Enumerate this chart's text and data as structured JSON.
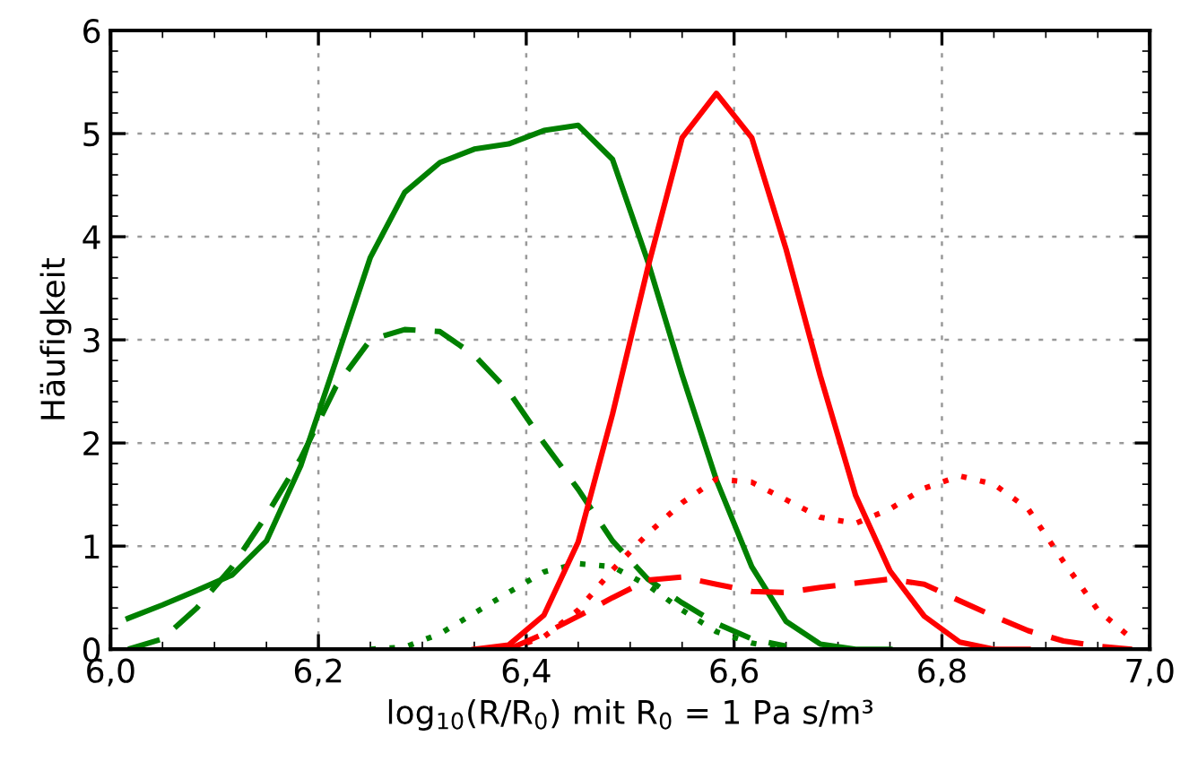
{
  "chart_data": {
    "type": "line",
    "xlabel": "log$_{10}$(R/R$_{0}$) mit R$_{0}$ = 1 Pa s/m³",
    "ylabel": "Häufigkeit",
    "xlim": [
      6.0,
      7.0
    ],
    "ylim": [
      0,
      6
    ],
    "xticks": [
      {
        "value": 6.0,
        "label": "6,0"
      },
      {
        "value": 6.2,
        "label": "6,2"
      },
      {
        "value": 6.4,
        "label": "6,4"
      },
      {
        "value": 6.6,
        "label": "6,6"
      },
      {
        "value": 6.8,
        "label": "6,8"
      },
      {
        "value": 7.0,
        "label": "7,0"
      }
    ],
    "yticks": [
      0,
      1,
      2,
      3,
      4,
      5,
      6
    ],
    "grid": true,
    "legend": false,
    "marker": "none",
    "series": [
      {
        "color": "#008000",
        "line_style": "solid",
        "x": [
          6.017,
          6.05,
          6.083,
          6.117,
          6.15,
          6.183,
          6.217,
          6.25,
          6.283,
          6.317,
          6.35,
          6.383,
          6.417,
          6.45,
          6.483,
          6.517,
          6.55,
          6.583,
          6.617,
          6.65,
          6.683,
          6.717,
          6.75
        ],
        "values": [
          0.3,
          0.43,
          0.57,
          0.72,
          1.05,
          1.78,
          2.8,
          3.8,
          4.43,
          4.72,
          4.85,
          4.9,
          5.03,
          5.08,
          4.75,
          3.76,
          2.66,
          1.64,
          0.8,
          0.27,
          0.05,
          0.0,
          0.0
        ]
      },
      {
        "color": "#008000",
        "line_style": "dashed",
        "x": [
          6.017,
          6.05,
          6.083,
          6.117,
          6.15,
          6.183,
          6.217,
          6.25,
          6.283,
          6.317,
          6.35,
          6.383,
          6.417,
          6.45,
          6.483,
          6.517,
          6.55,
          6.583,
          6.617,
          6.65
        ],
        "values": [
          0.0,
          0.1,
          0.4,
          0.8,
          1.3,
          1.85,
          2.55,
          3.0,
          3.1,
          3.08,
          2.85,
          2.5,
          2.0,
          1.55,
          1.05,
          0.68,
          0.45,
          0.25,
          0.1,
          0.03
        ]
      },
      {
        "color": "#008000",
        "line_style": "dotted",
        "x": [
          6.25,
          6.283,
          6.317,
          6.35,
          6.383,
          6.417,
          6.45,
          6.483,
          6.517,
          6.55,
          6.583,
          6.617,
          6.65
        ],
        "values": [
          0.0,
          0.02,
          0.15,
          0.35,
          0.55,
          0.75,
          0.83,
          0.8,
          0.62,
          0.38,
          0.17,
          0.06,
          0.0
        ]
      },
      {
        "color": "#ff0000",
        "line_style": "solid",
        "x": [
          6.35,
          6.383,
          6.417,
          6.45,
          6.483,
          6.517,
          6.55,
          6.583,
          6.617,
          6.65,
          6.683,
          6.717,
          6.75,
          6.783,
          6.817,
          6.85,
          6.883
        ],
        "values": [
          0.0,
          0.04,
          0.33,
          1.04,
          2.28,
          3.7,
          4.96,
          5.39,
          4.96,
          3.88,
          2.65,
          1.49,
          0.76,
          0.32,
          0.07,
          0.0,
          0.0
        ]
      },
      {
        "color": "#ff0000",
        "line_style": "dashed",
        "x": [
          6.383,
          6.417,
          6.45,
          6.483,
          6.517,
          6.55,
          6.583,
          6.617,
          6.65,
          6.683,
          6.717,
          6.75,
          6.783,
          6.817,
          6.85,
          6.883,
          6.917,
          6.95,
          6.983
        ],
        "values": [
          0.0,
          0.15,
          0.32,
          0.5,
          0.67,
          0.7,
          0.63,
          0.56,
          0.55,
          0.6,
          0.64,
          0.68,
          0.63,
          0.47,
          0.32,
          0.18,
          0.08,
          0.03,
          0.0
        ]
      },
      {
        "color": "#ff0000",
        "line_style": "dotted",
        "x": [
          6.383,
          6.417,
          6.45,
          6.483,
          6.517,
          6.55,
          6.583,
          6.617,
          6.65,
          6.683,
          6.717,
          6.75,
          6.783,
          6.817,
          6.85,
          6.883,
          6.917,
          6.95,
          6.983
        ],
        "values": [
          0.0,
          0.12,
          0.38,
          0.77,
          1.12,
          1.42,
          1.65,
          1.62,
          1.45,
          1.28,
          1.22,
          1.36,
          1.56,
          1.68,
          1.6,
          1.36,
          0.85,
          0.38,
          0.1
        ]
      }
    ]
  }
}
